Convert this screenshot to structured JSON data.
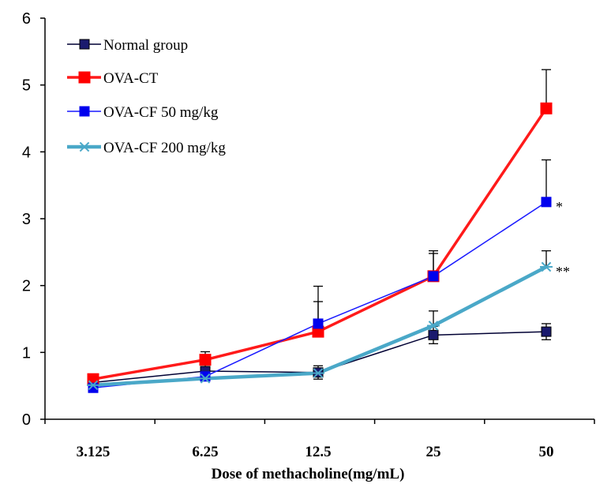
{
  "chart_data": {
    "type": "line",
    "title": "",
    "xlabel": "Dose of methacholine(mg/mL)",
    "ylabel": "",
    "categories": [
      "3.125",
      "6.25",
      "12.5",
      "25",
      "50"
    ],
    "ylim": [
      0,
      6
    ],
    "yticks": [
      0,
      1,
      2,
      3,
      4,
      5,
      6
    ],
    "grid": false,
    "legend_position": "top-left",
    "series": [
      {
        "name": "Normal group",
        "color": "#000033",
        "marker_color": "#1a1a6e",
        "marker": "square",
        "values": [
          0.55,
          0.72,
          0.7,
          1.26,
          1.31
        ],
        "errors": [
          0.05,
          0.1,
          0.1,
          0.13,
          0.12
        ]
      },
      {
        "name": "OVA-CT",
        "color": "#ff1a1a",
        "marker_color": "#ff0000",
        "marker": "square",
        "values": [
          0.6,
          0.89,
          1.31,
          2.14,
          4.65
        ],
        "errors": [
          0.03,
          0.12,
          0.45,
          0.38,
          0.58
        ]
      },
      {
        "name": "OVA-CF 50 mg/kg",
        "color": "#1a1aff",
        "marker_color": "#0000ee",
        "marker": "square",
        "values": [
          0.47,
          0.64,
          1.43,
          2.14,
          3.25
        ],
        "errors": [
          0.03,
          0.07,
          0.56,
          0.34,
          0.63
        ]
      },
      {
        "name": "OVA-CF 200 mg/kg",
        "color": "#4aa8c8",
        "marker_color": "#4aa8c8",
        "marker": "asterisk",
        "values": [
          0.51,
          0.61,
          0.69,
          1.4,
          2.28
        ],
        "errors": [
          0.03,
          0.06,
          0.06,
          0.22,
          0.24
        ]
      }
    ],
    "annotations": [
      {
        "text": "*",
        "series_index": 2,
        "point_index": 4
      },
      {
        "text": "**",
        "series_index": 3,
        "point_index": 4
      }
    ]
  }
}
